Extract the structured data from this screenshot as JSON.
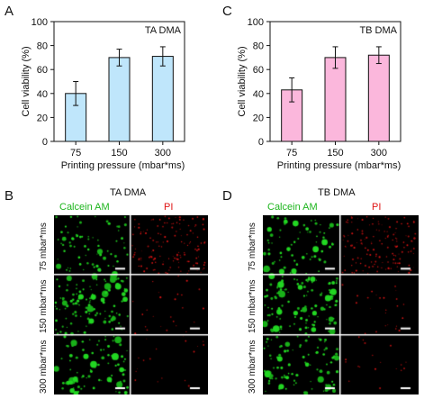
{
  "panels": {
    "A": "A",
    "B": "B",
    "C": "C",
    "D": "D"
  },
  "chart_data": [
    {
      "type": "bar",
      "panel": "A",
      "title": "TA DMA",
      "categories": [
        "75",
        "150",
        "300"
      ],
      "values": [
        40,
        70,
        71
      ],
      "errors": [
        10,
        7,
        8
      ],
      "xlabel": "Printing pressure (mbar*ms)",
      "ylabel": "Cell viability (%)",
      "ylim": [
        0,
        100
      ],
      "yticks": [
        "0",
        "20",
        "40",
        "60",
        "80",
        "100"
      ],
      "bar_color": "#bfe6fb"
    },
    {
      "type": "bar",
      "panel": "C",
      "title": "TB DMA",
      "categories": [
        "75",
        "150",
        "300"
      ],
      "values": [
        43,
        70,
        72
      ],
      "errors": [
        10,
        9,
        7
      ],
      "xlabel": "Printing pressure (mbar*ms)",
      "ylabel": "Cell viability (%)",
      "ylim": [
        0,
        100
      ],
      "yticks": [
        "0",
        "20",
        "40",
        "60",
        "80",
        "100"
      ],
      "bar_color": "#fbb7dc"
    }
  ],
  "images": {
    "B": {
      "title": "TA DMA",
      "col_calcein": "Calcein AM",
      "col_pi": "PI",
      "rows": [
        "75 mbar*ms",
        "150 mbar*ms",
        "300 mbar*ms"
      ]
    },
    "D": {
      "title": "TB DMA",
      "col_calcein": "Calcein AM",
      "col_pi": "PI",
      "rows": [
        "75 mbar*ms",
        "150 mbar*ms",
        "300 mbar*ms"
      ]
    }
  },
  "colors": {
    "green": "#1db51d",
    "red": "#e01515",
    "black": "#000000"
  }
}
